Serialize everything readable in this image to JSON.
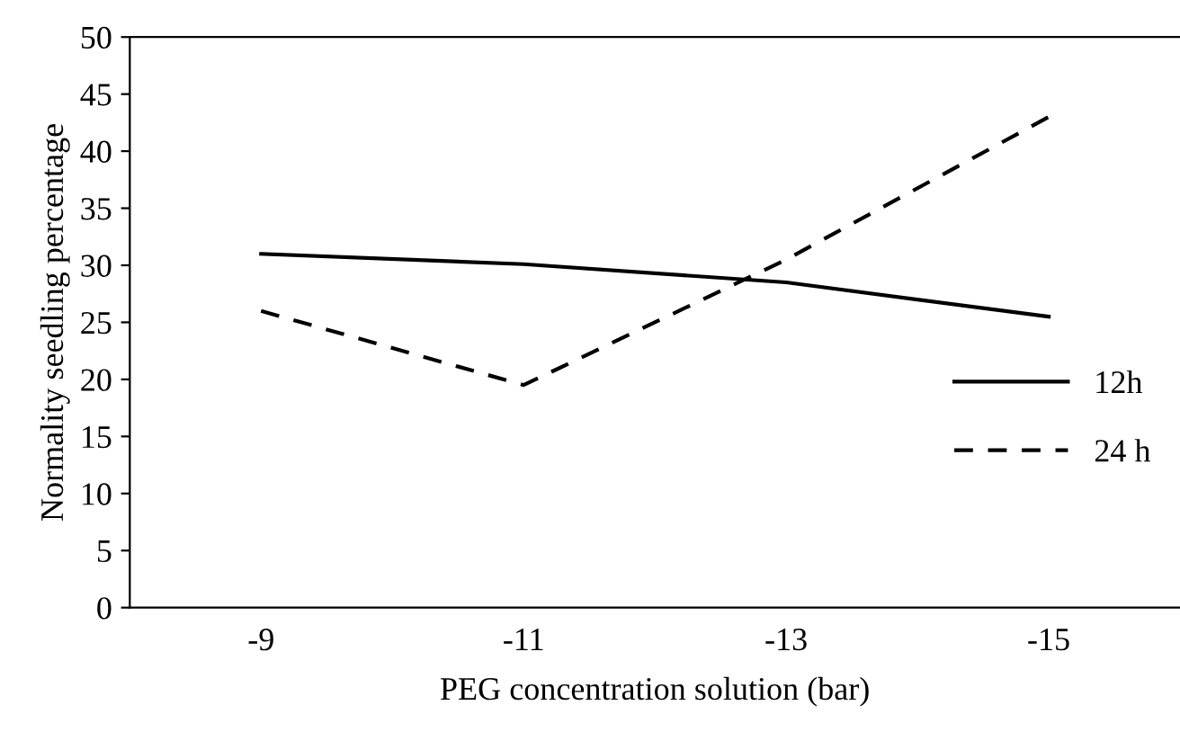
{
  "chart_data": {
    "type": "line",
    "xlabel": "PEG concentration solution (bar)",
    "ylabel": "Normality seedling percentage",
    "categories": [
      "-9",
      "-11",
      "-13",
      "-15"
    ],
    "series": [
      {
        "name": "12h",
        "color": "#000000",
        "line_style": "solid",
        "values": [
          31,
          30.1,
          28.5,
          25.5
        ]
      },
      {
        "name": "24 h",
        "color": "#000000",
        "line_style": "dashed",
        "values": [
          26,
          19.5,
          30.5,
          43
        ]
      }
    ],
    "ylim": [
      0,
      50
    ],
    "yticks": [
      0,
      5,
      10,
      15,
      20,
      25,
      30,
      35,
      40,
      45,
      50
    ],
    "grid": false,
    "legend": "right",
    "marker": "none"
  }
}
